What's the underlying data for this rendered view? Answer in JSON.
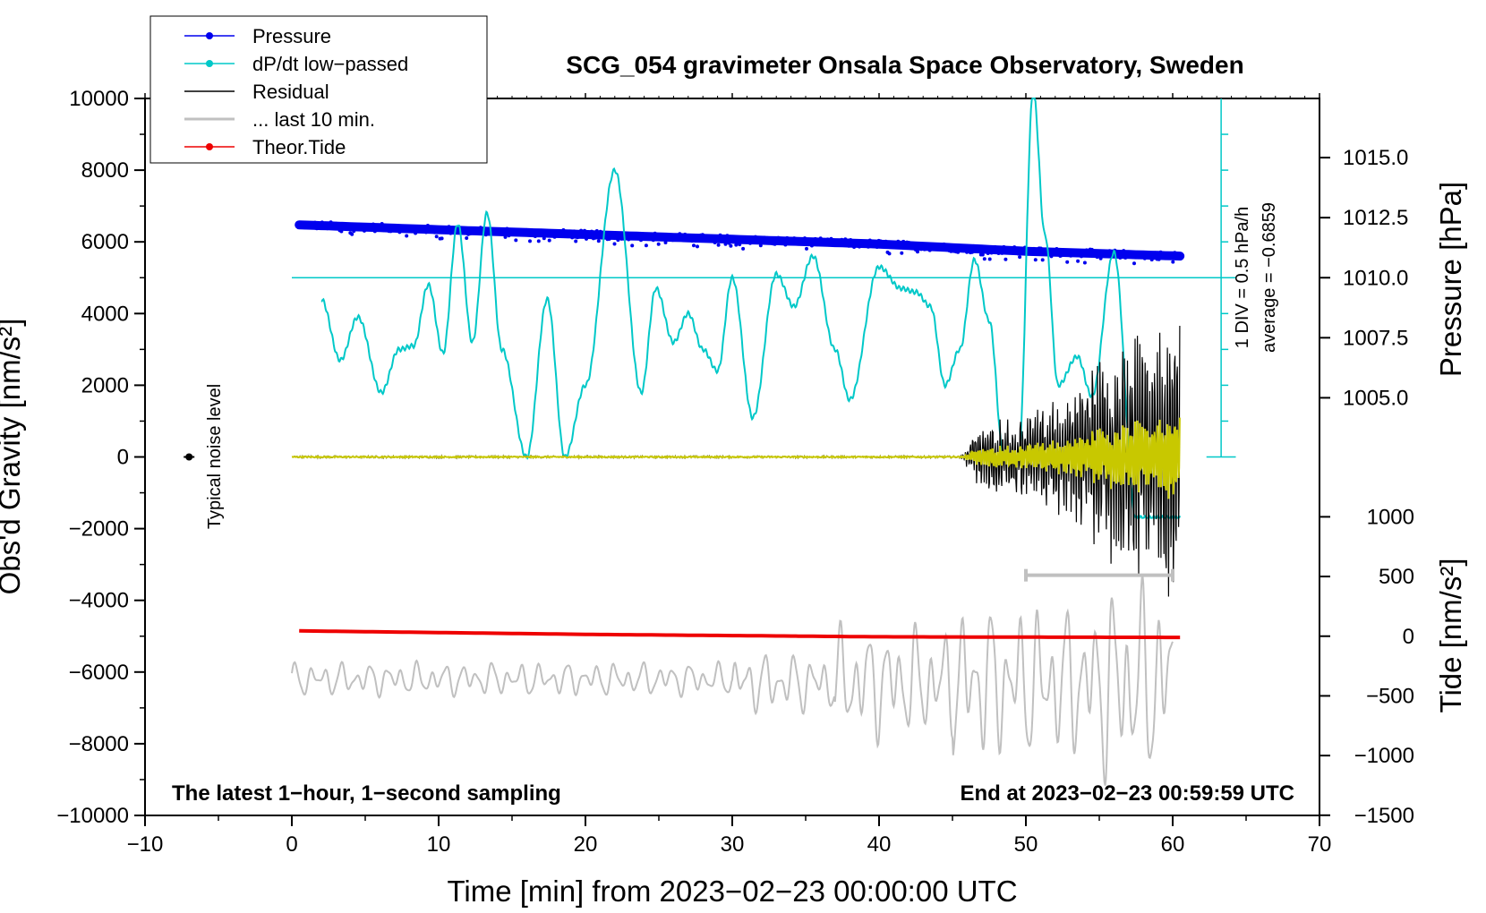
{
  "chart_data": {
    "type": "line",
    "title": "SCG_054 gravimeter Onsala Space Observatory, Sweden",
    "xlabel": "Time [min] from 2023−02−23 00:00:00 UTC",
    "ylabel_left": "Obs'd Gravity [nm/s²]",
    "ylabel_right_top": "Pressure [hPa]",
    "ylabel_right_bottom": "Tide [nm/s²]",
    "xlim": [
      -10,
      70
    ],
    "ylim": [
      -10000,
      10000
    ],
    "x_ticks": [
      -10,
      0,
      10,
      20,
      30,
      40,
      50,
      60,
      70
    ],
    "x_tick_labels": [
      "−10",
      "0",
      "10",
      "20",
      "30",
      "40",
      "50",
      "60",
      "70"
    ],
    "y_ticks": [
      10000,
      8000,
      6000,
      4000,
      2000,
      0,
      -2000,
      -4000,
      -6000,
      -8000,
      -10000
    ],
    "y_tick_labels": [
      "10000",
      "8000",
      "6000",
      "4000",
      "2000",
      "0",
      "−2000",
      "−4000",
      "−6000",
      "−8000",
      "−10000"
    ],
    "pressure_axis": {
      "ticks": [
        1015.0,
        1012.5,
        1010.0,
        1007.5,
        1005.0
      ],
      "tick_labels": [
        "1015.0",
        "1012.5",
        "1010.0",
        "1007.5",
        "1005.0"
      ],
      "gravity_at_1010": 5000,
      "gravity_per_hPa": 670
    },
    "tide_axis": {
      "ticks": [
        1000,
        500,
        0,
        -500,
        -1000,
        -1500
      ],
      "tick_labels": [
        "1000",
        "500",
        "0",
        "−500",
        "−1000",
        "−1500"
      ],
      "gravity_at_0": -5000,
      "gravity_per_unit": 3.33
    },
    "legend": [
      {
        "label": "Pressure",
        "color": "#0000ee",
        "marker": true
      },
      {
        "label": "dP/dt low−passed",
        "color": "#00c8c8",
        "marker": true
      },
      {
        "label": "Residual",
        "color": "#000000",
        "marker": false
      },
      {
        "label": "... last 10 min.",
        "color": "#c0c0c0",
        "marker": false
      },
      {
        "label": "Theor.Tide",
        "color": "#ee0000",
        "marker": true
      }
    ],
    "series": [
      {
        "name": "Pressure",
        "color": "#0000ee",
        "unit": "hPa",
        "x": [
          0.5,
          10,
          20,
          30,
          40,
          50,
          60.5
        ],
        "values": [
          1012.2,
          1012.0,
          1011.8,
          1011.6,
          1011.4,
          1011.1,
          1010.9
        ]
      },
      {
        "name": "dP/dt low−passed",
        "color": "#00c8c8",
        "unit": "nm/s² (plot scale)",
        "x": [
          2,
          3.3,
          4.5,
          6.1,
          7.3,
          8.3,
          9.3,
          10.3,
          11.3,
          12.3,
          13.3,
          14.3,
          16.0,
          17.4,
          18.6,
          20.0,
          22.0,
          23.8,
          24.8,
          26.0,
          27.0,
          28.0,
          29.0,
          30.0,
          31.4,
          33.0,
          34.2,
          35.5,
          37.0,
          38.0,
          40.0,
          41.5,
          42.5,
          43.5,
          44.5,
          45.5,
          46.5,
          47.5,
          48.5,
          49.5,
          50.5,
          51.3,
          52.2,
          53.5,
          54.5,
          56.0,
          57.5,
          60.5
        ],
        "values": [
          4400,
          2700,
          3900,
          1800,
          3000,
          3100,
          4800,
          2900,
          6500,
          3200,
          6800,
          3000,
          0,
          4400,
          0,
          2000,
          8000,
          1800,
          4700,
          3200,
          4000,
          3000,
          2400,
          5000,
          1100,
          5100,
          4200,
          5600,
          3000,
          1600,
          5300,
          4700,
          4600,
          4200,
          2000,
          3000,
          5500,
          3800,
          0,
          0,
          10200,
          6200,
          2000,
          2800,
          1700,
          5700,
          -1700,
          -1700
        ]
      },
      {
        "name": "Residual",
        "color": "#000000",
        "unit": "nm/s²",
        "x": [
          0,
          45.5,
          47,
          50,
          53,
          55,
          57,
          59,
          60.5
        ],
        "values": [
          0,
          0,
          1000,
          1200,
          2000,
          2800,
          3500,
          4000,
          4000
        ],
        "note": "flat near 0 until ~45.5 min, then oscillation with growing amplitude (envelope values)"
      },
      {
        "name": "... last 10 min.",
        "color": "#c0c0c0",
        "unit": "nm/s² (plot scale)",
        "x": [
          0,
          30,
          33,
          38,
          45,
          50,
          55,
          57.5,
          60
        ],
        "values": [
          -6200,
          -6400,
          -5600,
          -3400,
          -4000,
          -3300,
          -3300,
          -2200,
          -4800
        ],
        "note": "wavy trace; peak envelope values"
      },
      {
        "name": "Theor.Tide",
        "color": "#ee0000",
        "unit": "nm/s²",
        "x": [
          0.5,
          10,
          20,
          30,
          40,
          50,
          60.5
        ],
        "values": [
          45,
          30,
          15,
          5,
          -5,
          -8,
          -10
        ]
      }
    ],
    "noise_level": {
      "label": "Typical noise level",
      "x": -7,
      "y": 0
    },
    "range_marker": {
      "x_start": 50,
      "x_end": 60,
      "y": -3300
    },
    "scale_text": "1 DIV = 0.5 hPa/h",
    "average_text": "average = −0.6859",
    "footer_left": "The latest 1−hour, 1−second sampling",
    "footer_right": "End at 2023−02−23 00:59:59 UTC"
  }
}
